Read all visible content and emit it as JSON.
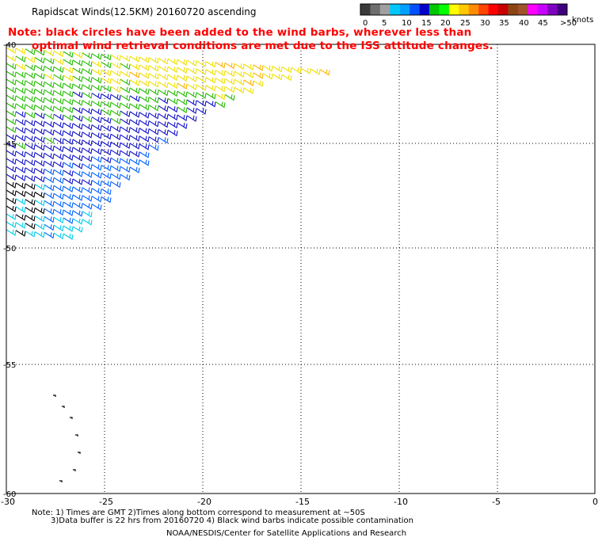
{
  "title": "Rapidscat Winds(12.5KM) 20160720 ascending",
  "note": {
    "line1": "Note: black circles have been added to the wind barbs, wherever less than",
    "line2": "optimal wind retrieval conditions are met due to the ISS attitude changes."
  },
  "legend": {
    "unit": "knots",
    "labels": [
      "0",
      "5",
      "10",
      "15",
      "20",
      "25",
      "30",
      "35",
      "40",
      "45",
      ">50"
    ],
    "colors": [
      "#3a3a3a",
      "#6e6e6e",
      "#a0a0a0",
      "#00c8ff",
      "#00a0ff",
      "#0050ff",
      "#0000c8",
      "#00c800",
      "#00ff00",
      "#ffff00",
      "#ffc800",
      "#ff8c00",
      "#ff4500",
      "#ff0000",
      "#c80000",
      "#8b4513",
      "#a0522d",
      "#ff00ff",
      "#c800ff",
      "#8000c0",
      "#400080"
    ]
  },
  "axes": {
    "x_ticks": [
      "-30",
      "-25",
      "-20",
      "-15",
      "-10",
      "-5",
      "0"
    ],
    "y_ticks": [
      "-40",
      "-45",
      "-50",
      "-55",
      "-60"
    ]
  },
  "footer": {
    "line1": "Note: 1) Times are GMT 2)Times along bottom correspond to measurement at ~50S",
    "line2": "3)Data buffer is 22 hrs from 20160720 4) Black wind barbs indicate possible contamination",
    "line3": "NOAA/NESDIS/Center for Satellite Applications and Research"
  },
  "colors": {
    "note": "#ff0000",
    "grid": "#000000"
  }
}
